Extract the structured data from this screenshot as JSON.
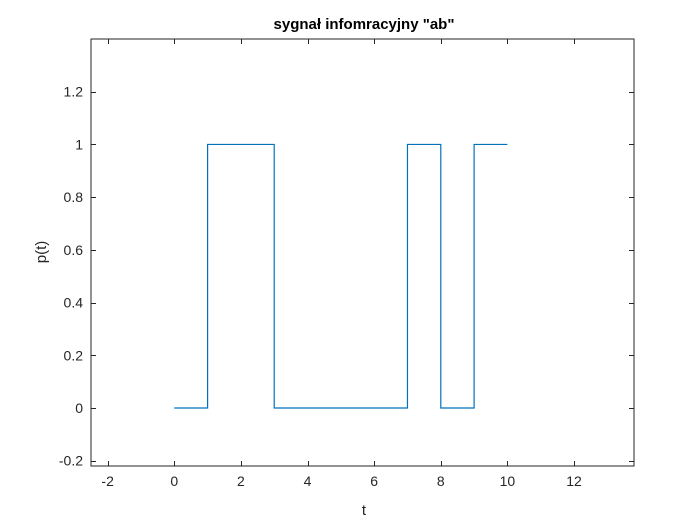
{
  "chart_data": {
    "type": "line",
    "title": "sygnał infomracyjny \"ab\"",
    "xlabel": "t",
    "ylabel": "p(t)",
    "xlim": [
      -2.5,
      13.8
    ],
    "ylim": [
      -0.22,
      1.4
    ],
    "xticks": [
      -2,
      0,
      2,
      4,
      6,
      8,
      10,
      12
    ],
    "xtick_labels": [
      "-2",
      "0",
      "2",
      "4",
      "6",
      "8",
      "10",
      "12"
    ],
    "yticks": [
      -0.2,
      0,
      0.2,
      0.4,
      0.6,
      0.8,
      1,
      1.2
    ],
    "ytick_labels": [
      "-0.2",
      "0",
      "0.2",
      "0.4",
      "0.6",
      "0.8",
      "1",
      "1.2"
    ],
    "grid": false,
    "box": true,
    "series": [
      {
        "color": "#0072BD",
        "x": [
          0,
          1,
          1,
          3,
          3,
          7,
          7,
          8,
          8,
          9,
          9,
          10
        ],
        "y": [
          0,
          0,
          1,
          1,
          0,
          0,
          1,
          1,
          0,
          0,
          1,
          1
        ]
      }
    ]
  }
}
